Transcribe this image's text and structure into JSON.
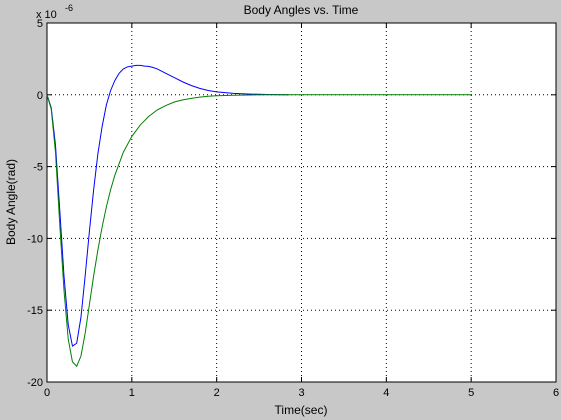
{
  "chart_data": {
    "type": "line",
    "title": "Body Angles vs. Time",
    "xlabel": "Time(sec)",
    "ylabel": "Body Angle(rad)",
    "y_exponent_base": "x 10",
    "y_exponent_power": "-6",
    "xlim": [
      0,
      6
    ],
    "ylim": [
      -20,
      5
    ],
    "x_ticks": [
      0,
      1,
      2,
      3,
      4,
      5,
      6
    ],
    "y_ticks": [
      5,
      0,
      -5,
      -10,
      -15,
      -20
    ],
    "grid": true,
    "series": [
      {
        "color": "#0000ff",
        "x": [
          0,
          0.05,
          0.1,
          0.15,
          0.2,
          0.25,
          0.3,
          0.35,
          0.4,
          0.45,
          0.5,
          0.55,
          0.6,
          0.65,
          0.7,
          0.75,
          0.8,
          0.85,
          0.9,
          0.95,
          1.0,
          1.05,
          1.1,
          1.15,
          1.2,
          1.25,
          1.3,
          1.4,
          1.5,
          1.6,
          1.7,
          1.8,
          1.9,
          2.0,
          2.2,
          2.4,
          2.6,
          2.8,
          2.85
        ],
        "y": [
          0,
          -0.9,
          -3.5,
          -8.0,
          -12.6,
          -16.0,
          -17.5,
          -17.3,
          -15.5,
          -12.6,
          -9.5,
          -6.6,
          -4.1,
          -2.2,
          -0.7,
          0.3,
          1.0,
          1.5,
          1.8,
          1.95,
          2.0,
          2.05,
          2.05,
          2.0,
          1.98,
          1.9,
          1.8,
          1.5,
          1.2,
          0.9,
          0.65,
          0.45,
          0.3,
          0.2,
          0.1,
          0.05,
          0.02,
          0.0,
          0.0
        ]
      },
      {
        "color": "#008000",
        "x": [
          0,
          0.05,
          0.1,
          0.15,
          0.2,
          0.25,
          0.3,
          0.35,
          0.4,
          0.45,
          0.5,
          0.55,
          0.6,
          0.65,
          0.7,
          0.75,
          0.8,
          0.9,
          1.0,
          1.1,
          1.2,
          1.3,
          1.4,
          1.5,
          1.6,
          1.7,
          1.8,
          1.9,
          2.0,
          2.2,
          2.4,
          2.6,
          2.8,
          3.0,
          3.5,
          4.0,
          4.5,
          5.0
        ],
        "y": [
          0,
          -1.0,
          -4.0,
          -9.0,
          -13.6,
          -17.0,
          -18.6,
          -18.9,
          -18.2,
          -16.6,
          -14.6,
          -12.6,
          -10.8,
          -9.2,
          -7.8,
          -6.6,
          -5.6,
          -4.0,
          -2.9,
          -2.1,
          -1.5,
          -1.05,
          -0.75,
          -0.5,
          -0.35,
          -0.25,
          -0.16,
          -0.1,
          -0.07,
          -0.03,
          -0.01,
          0.0,
          0.0,
          0.0,
          0.0,
          0.0,
          0.0,
          0.0
        ]
      }
    ]
  }
}
